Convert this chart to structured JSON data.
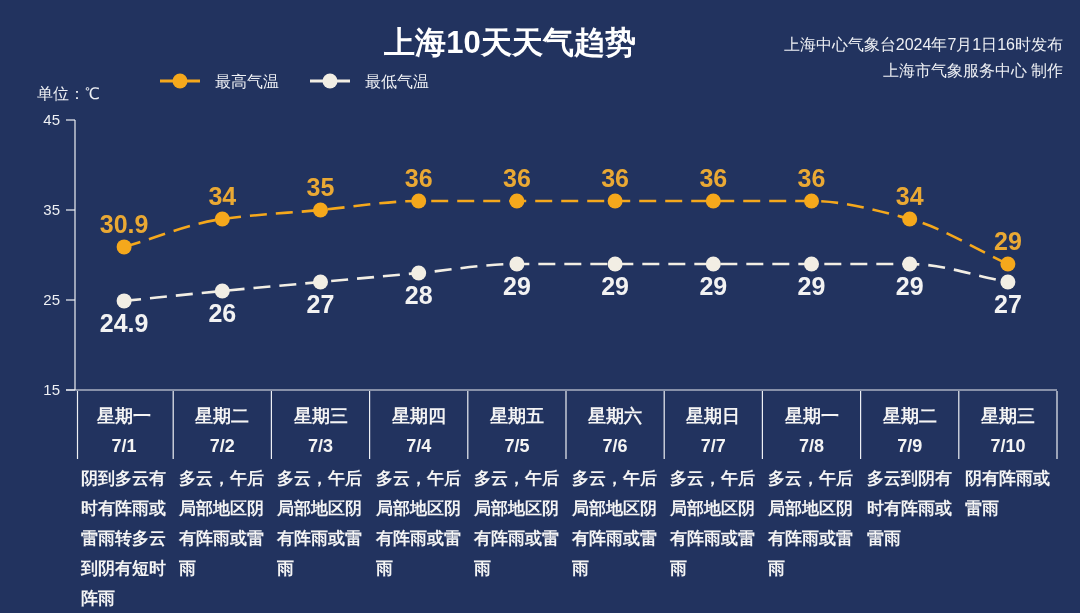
{
  "chart_data": {
    "type": "line",
    "title": "上海10天天气趋势",
    "ylabel": "单位：℃",
    "annotations": [
      "上海中心气象台2024年7月1日16时发布",
      "上海市气象服务中心 制作"
    ],
    "categories": [
      "星期一\n7/1\n阴到多云有时有阵雨或雷雨转多云到阴有短时阵雨",
      "星期二\n7/2\n多云，午后局部地区阴有阵雨或雷雨",
      "星期三\n7/3\n多云，午后局部地区阴有阵雨或雷雨",
      "星期四\n7/4\n多云，午后局部地区阴有阵雨或雷雨",
      "星期五\n7/5\n多云，午后局部地区阴有阵雨或雷雨",
      "星期六\n7/6\n多云，午后局部地区阴有阵雨或雷雨",
      "星期日\n7/7\n多云，午后局部地区阴有阵雨或雷雨",
      "星期一\n7/8\n多云，午后局部地区阴有阵雨或雷雨",
      "星期二\n7/9\n多云到阴有时有阵雨或雷雨",
      "星期三\n7/10\n阴有阵雨或雷雨"
    ],
    "series": [
      {
        "name": "最高气温",
        "color": "#f5a81c",
        "values": [
          30.9,
          34,
          35,
          36,
          36,
          36,
          36,
          36,
          34,
          29
        ]
      },
      {
        "name": "最低气温",
        "color": "#f2eee4",
        "values": [
          24.9,
          26,
          27,
          28,
          29,
          29,
          29,
          29,
          29,
          27
        ]
      }
    ],
    "ylim": [
      15,
      45
    ],
    "yticks": [
      15,
      25,
      35,
      45
    ],
    "legend": "top left",
    "marker": "circle",
    "line_style": "dashed",
    "data_labels": true
  }
}
